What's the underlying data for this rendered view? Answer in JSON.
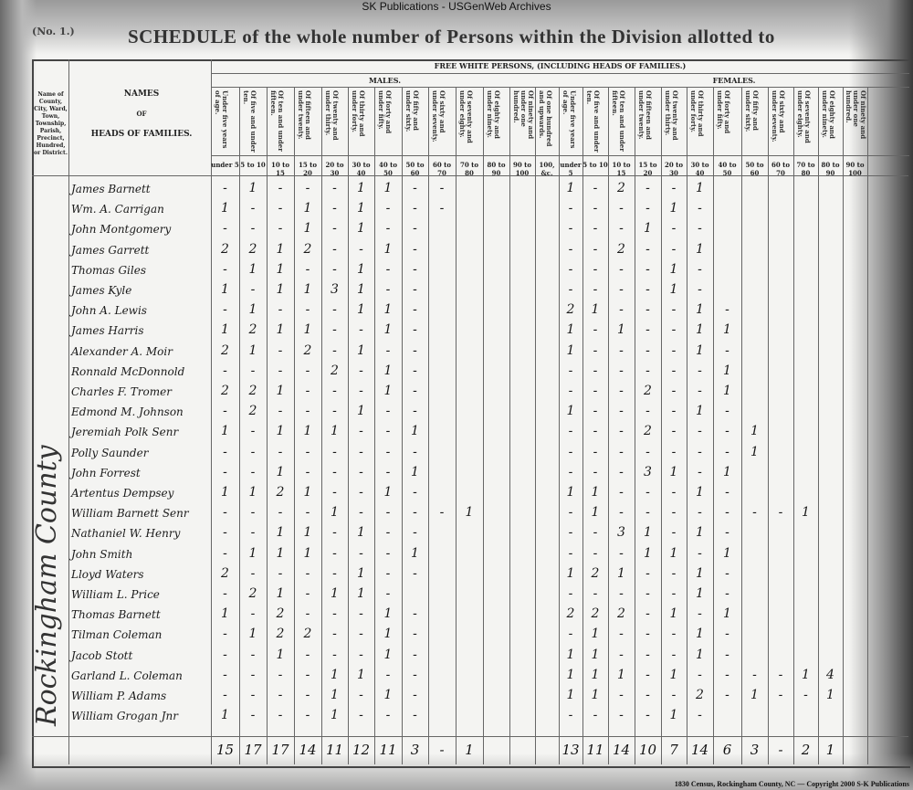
{
  "site_title": "SK Publications - USGenWeb Archives",
  "page_number": "(No. 1.)",
  "schedule_title": "SCHEDULE of the whole number of Persons within the Division allotted to",
  "caption": "1830 Census, Rockingham County, NC — Copyright 2000 S-K Publications",
  "county_label": "Rockingham County",
  "headers": {
    "place": "Name of County, City, Ward, Town, Township, Parish, Precinct, Hundred, or District.",
    "names": "NAMES",
    "names_of": "OF",
    "names_heads": "HEADS OF FAMILIES.",
    "free_white": "FREE WHITE PERSONS, (INCLUDING HEADS OF FAMILIES.)",
    "males": "MALES.",
    "females": "FEMALES."
  },
  "male_columns": [
    {
      "label": "Under five years of age.",
      "short": "under 5"
    },
    {
      "label": "Of five and under ten.",
      "short": "5 to 10"
    },
    {
      "label": "Of ten and under fifteen.",
      "short": "10 to 15"
    },
    {
      "label": "Of fifteen and under twenty.",
      "short": "15 to 20"
    },
    {
      "label": "Of twenty and under thirty.",
      "short": "20 to 30"
    },
    {
      "label": "Of thirty and under forty.",
      "short": "30 to 40"
    },
    {
      "label": "Of forty and under fifty.",
      "short": "40 to 50"
    },
    {
      "label": "Of fifty and under sixty.",
      "short": "50 to 60"
    },
    {
      "label": "Of sixty and under seventy.",
      "short": "60 to 70"
    },
    {
      "label": "Of seventy and under eighty.",
      "short": "70 to 80"
    },
    {
      "label": "Of eighty and under ninety.",
      "short": "80 to 90"
    },
    {
      "label": "Of ninety and under one hundred.",
      "short": "90 to 100"
    },
    {
      "label": "Of one hundred and upwards.",
      "short": "100, &c."
    }
  ],
  "female_columns": [
    {
      "label": "Under five years of age.",
      "short": "under 5"
    },
    {
      "label": "Of five and under ten.",
      "short": "5 to 10"
    },
    {
      "label": "Of ten and under fifteen.",
      "short": "10 to 15"
    },
    {
      "label": "Of fifteen and under twenty.",
      "short": "15 to 20"
    },
    {
      "label": "Of twenty and under thirty.",
      "short": "20 to 30"
    },
    {
      "label": "Of thirty and under forty.",
      "short": "30 to 40"
    },
    {
      "label": "Of forty and under fifty.",
      "short": "40 to 50"
    },
    {
      "label": "Of fifty and under sixty.",
      "short": "50 to 60"
    },
    {
      "label": "Of sixty and under seventy.",
      "short": "60 to 70"
    },
    {
      "label": "Of seventy and under eighty.",
      "short": "70 to 80"
    },
    {
      "label": "Of eighty and under ninety.",
      "short": "80 to 90"
    },
    {
      "label": "Of ninety and under one hundred.",
      "short": "90 to 100"
    }
  ],
  "rows": [
    {
      "name": "James Barnett",
      "males": [
        "-",
        "1",
        "-",
        "-",
        "-",
        "1",
        "1",
        "-",
        "-"
      ],
      "females": [
        "1",
        "-",
        "2",
        "-",
        "-",
        "1"
      ]
    },
    {
      "name": "Wm. A. Carrigan",
      "males": [
        "1",
        "-",
        "-",
        "1",
        "-",
        "1",
        "-",
        "-",
        "-"
      ],
      "females": [
        "-",
        "-",
        "-",
        "-",
        "1",
        "-"
      ]
    },
    {
      "name": "John Montgomery",
      "males": [
        "-",
        "-",
        "-",
        "1",
        "-",
        "1",
        "-",
        "-"
      ],
      "females": [
        "-",
        "-",
        "-",
        "1",
        "-",
        "-"
      ]
    },
    {
      "name": "James Garrett",
      "males": [
        "2",
        "2",
        "1",
        "2",
        "-",
        "-",
        "1",
        "-"
      ],
      "females": [
        "-",
        "-",
        "2",
        "-",
        "-",
        "1"
      ]
    },
    {
      "name": "Thomas Giles",
      "males": [
        "-",
        "1",
        "1",
        "-",
        "-",
        "1",
        "-",
        "-"
      ],
      "females": [
        "-",
        "-",
        "-",
        "-",
        "1",
        "-"
      ]
    },
    {
      "name": "James Kyle",
      "males": [
        "1",
        "-",
        "1",
        "1",
        "3",
        "1",
        "-",
        "-"
      ],
      "females": [
        "-",
        "-",
        "-",
        "-",
        "1",
        "-"
      ]
    },
    {
      "name": "John A. Lewis",
      "males": [
        "-",
        "1",
        "-",
        "-",
        "-",
        "1",
        "1",
        "-"
      ],
      "females": [
        "2",
        "1",
        "-",
        "-",
        "-",
        "1",
        "-"
      ]
    },
    {
      "name": "James Harris",
      "males": [
        "1",
        "2",
        "1",
        "1",
        "-",
        "-",
        "1",
        "-"
      ],
      "females": [
        "1",
        "-",
        "1",
        "-",
        "-",
        "1",
        "1"
      ]
    },
    {
      "name": "Alexander A. Moir",
      "males": [
        "2",
        "1",
        "-",
        "2",
        "-",
        "1",
        "-",
        "-"
      ],
      "females": [
        "1",
        "-",
        "-",
        "-",
        "-",
        "1",
        "-"
      ]
    },
    {
      "name": "Ronnald McDonnold",
      "males": [
        "-",
        "-",
        "-",
        "-",
        "2",
        "-",
        "1",
        "-"
      ],
      "females": [
        "-",
        "-",
        "-",
        "-",
        "-",
        "-",
        "1"
      ]
    },
    {
      "name": "Charles F. Tromer",
      "males": [
        "2",
        "2",
        "1",
        "-",
        "-",
        "-",
        "1",
        "-"
      ],
      "females": [
        "-",
        "-",
        "-",
        "2",
        "-",
        "-",
        "1"
      ]
    },
    {
      "name": "Edmond M. Johnson",
      "males": [
        "-",
        "2",
        "-",
        "-",
        "-",
        "1",
        "-",
        "-"
      ],
      "females": [
        "1",
        "-",
        "-",
        "-",
        "-",
        "1",
        "-"
      ]
    },
    {
      "name": "Jeremiah Polk Senr",
      "males": [
        "1",
        "-",
        "1",
        "1",
        "1",
        "-",
        "-",
        "1"
      ],
      "females": [
        "-",
        "-",
        "-",
        "2",
        "-",
        "-",
        "-",
        "1"
      ]
    },
    {
      "name": "Polly Saunder",
      "males": [
        "-",
        "-",
        "-",
        "-",
        "-",
        "-",
        "-",
        "-"
      ],
      "females": [
        "-",
        "-",
        "-",
        "-",
        "-",
        "-",
        "-",
        "1"
      ]
    },
    {
      "name": "John Forrest",
      "males": [
        "-",
        "-",
        "1",
        "-",
        "-",
        "-",
        "-",
        "1"
      ],
      "females": [
        "-",
        "-",
        "-",
        "3",
        "1",
        "-",
        "1"
      ]
    },
    {
      "name": "Artentus Dempsey",
      "males": [
        "1",
        "1",
        "2",
        "1",
        "-",
        "-",
        "1",
        "-"
      ],
      "females": [
        "1",
        "1",
        "-",
        "-",
        "-",
        "1",
        "-"
      ]
    },
    {
      "name": "William Barnett Senr",
      "males": [
        "-",
        "-",
        "-",
        "-",
        "1",
        "-",
        "-",
        "-",
        "-",
        "1"
      ],
      "females": [
        "-",
        "1",
        "-",
        "-",
        "-",
        "-",
        "-",
        "-",
        "-",
        "1"
      ]
    },
    {
      "name": "Nathaniel W. Henry",
      "males": [
        "-",
        "-",
        "1",
        "1",
        "-",
        "1",
        "-",
        "-"
      ],
      "females": [
        "-",
        "-",
        "3",
        "1",
        "-",
        "1",
        "-"
      ]
    },
    {
      "name": "John Smith",
      "males": [
        "-",
        "1",
        "1",
        "1",
        "-",
        "-",
        "-",
        "1"
      ],
      "females": [
        "-",
        "-",
        "-",
        "1",
        "1",
        "-",
        "1"
      ]
    },
    {
      "name": "Lloyd Waters",
      "males": [
        "2",
        "-",
        "-",
        "-",
        "-",
        "1",
        "-",
        "-"
      ],
      "females": [
        "1",
        "2",
        "1",
        "-",
        "-",
        "1",
        "-"
      ]
    },
    {
      "name": "William L. Price",
      "males": [
        "-",
        "2",
        "1",
        "-",
        "1",
        "1",
        "-"
      ],
      "females": [
        "-",
        "-",
        "-",
        "-",
        "-",
        "1",
        "-"
      ]
    },
    {
      "name": "Thomas Barnett",
      "males": [
        "1",
        "-",
        "2",
        "-",
        "-",
        "-",
        "1",
        "-"
      ],
      "females": [
        "2",
        "2",
        "2",
        "-",
        "1",
        "-",
        "1"
      ]
    },
    {
      "name": "Tilman Coleman",
      "males": [
        "-",
        "1",
        "2",
        "2",
        "-",
        "-",
        "1",
        "-"
      ],
      "females": [
        "-",
        "1",
        "-",
        "-",
        "-",
        "1",
        "-"
      ]
    },
    {
      "name": "Jacob Stott",
      "males": [
        "-",
        "-",
        "1",
        "-",
        "-",
        "-",
        "1",
        "-"
      ],
      "females": [
        "1",
        "1",
        "-",
        "-",
        "-",
        "1",
        "-"
      ]
    },
    {
      "name": "Garland L. Coleman",
      "males": [
        "-",
        "-",
        "-",
        "-",
        "1",
        "1",
        "-",
        "-"
      ],
      "females": [
        "1",
        "1",
        "1",
        "-",
        "1",
        "-",
        "-",
        "-",
        "-",
        "1",
        "4"
      ]
    },
    {
      "name": "William P. Adams",
      "males": [
        "-",
        "-",
        "-",
        "-",
        "1",
        "-",
        "1",
        "-"
      ],
      "females": [
        "1",
        "1",
        "-",
        "-",
        "-",
        "2",
        "-",
        "1",
        "-",
        "-",
        "1"
      ]
    },
    {
      "name": "William Grogan Jnr",
      "males": [
        "1",
        "-",
        "-",
        "-",
        "1",
        "-",
        "-",
        "-"
      ],
      "females": [
        "-",
        "-",
        "-",
        "-",
        "1",
        "-"
      ]
    }
  ],
  "totals": {
    "males": [
      "15",
      "17",
      "17",
      "14",
      "11",
      "12",
      "11",
      "3",
      "-",
      "1",
      "",
      "",
      ""
    ],
    "females": [
      "13",
      "11",
      "14",
      "10",
      "7",
      "14",
      "6",
      "3",
      "-",
      "2",
      "1",
      ""
    ]
  }
}
